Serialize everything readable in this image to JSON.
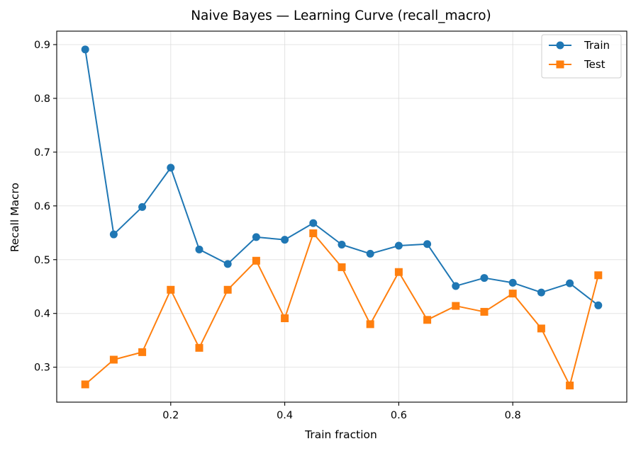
{
  "chart_data": {
    "type": "line",
    "title": "Naive Bayes — Learning Curve (recall_macro)",
    "xlabel": "Train fraction",
    "ylabel": "Recall Macro",
    "xlim": [
      0.0,
      1.0
    ],
    "ylim": [
      0.235,
      0.925
    ],
    "xticks": [
      0.2,
      0.4,
      0.6,
      0.8
    ],
    "xtick_labels": [
      "0.2",
      "0.4",
      "0.6",
      "0.8"
    ],
    "yticks": [
      0.3,
      0.4,
      0.5,
      0.6,
      0.7,
      0.8,
      0.9
    ],
    "ytick_labels": [
      "0.3",
      "0.4",
      "0.5",
      "0.6",
      "0.7",
      "0.8",
      "0.9"
    ],
    "grid": true,
    "legend": {
      "placement": "top-right",
      "entries": [
        "Train",
        "Test"
      ]
    },
    "x": [
      0.05,
      0.1,
      0.15,
      0.2,
      0.25,
      0.3,
      0.35,
      0.4,
      0.45,
      0.5,
      0.55,
      0.6,
      0.65,
      0.7,
      0.75,
      0.8,
      0.85,
      0.9,
      0.95
    ],
    "series": [
      {
        "name": "Train",
        "color": "#1f77b4",
        "marker": "circle",
        "values": [
          0.891,
          0.547,
          0.598,
          0.671,
          0.519,
          0.492,
          0.542,
          0.537,
          0.568,
          0.528,
          0.511,
          0.526,
          0.529,
          0.451,
          0.466,
          0.457,
          0.439,
          0.456,
          0.415
        ]
      },
      {
        "name": "Test",
        "color": "#ff7f0e",
        "marker": "square",
        "values": [
          0.268,
          0.314,
          0.328,
          0.444,
          0.336,
          0.444,
          0.498,
          0.391,
          0.549,
          0.486,
          0.38,
          0.477,
          0.388,
          0.414,
          0.403,
          0.437,
          0.372,
          0.266,
          0.471
        ]
      }
    ]
  }
}
